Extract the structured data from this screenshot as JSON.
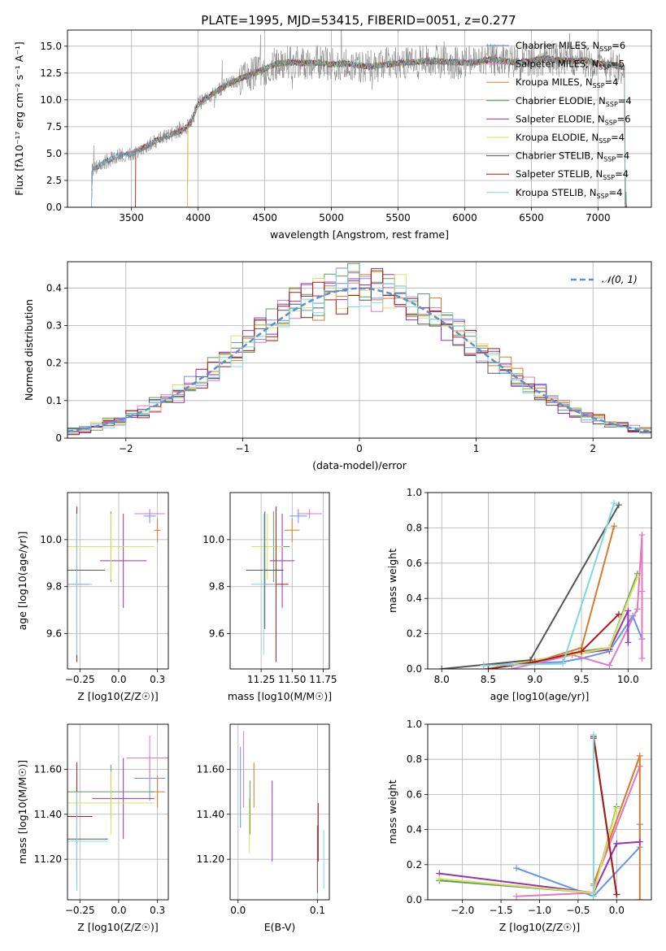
{
  "figure_title": "PLATE=1995, MJD=53415, FIBERID=0051, z=0.277",
  "colors": [
    "#6495ed",
    "#e377c2",
    "#d97b2b",
    "#5d9e5d",
    "#9b30b0",
    "#d7e35a",
    "#555555",
    "#aa1a1a",
    "#7fd9d9"
  ],
  "legend": [
    {
      "base": "Chabrier MILES, N",
      "sub": "SSP",
      "val": "=6"
    },
    {
      "base": "Salpeter MILES, N",
      "sub": "SSP",
      "val": "=5"
    },
    {
      "base": "Kroupa MILES, N",
      "sub": "SSP",
      "val": "=4"
    },
    {
      "base": "Chabrier ELODIE, N",
      "sub": "SSP",
      "val": "=4"
    },
    {
      "base": "Salpeter ELODIE, N",
      "sub": "SSP",
      "val": "=6"
    },
    {
      "base": "Kroupa ELODIE, N",
      "sub": "SSP",
      "val": "=4"
    },
    {
      "base": "Chabrier STELIB, N",
      "sub": "SSP",
      "val": "=4"
    },
    {
      "base": "Salpeter STELIB, N",
      "sub": "SSP",
      "val": "=4"
    },
    {
      "base": "Kroupa STELIB, N",
      "sub": "SSP",
      "val": "=4"
    }
  ],
  "chart_data": [
    {
      "id": "spectrum",
      "type": "line",
      "title": "PLATE=1995, MJD=53415, FIBERID=0051, z=0.277",
      "xlabel": "wavelength [Angstrom, rest frame]",
      "ylabel": "Flux [fλ10⁻¹⁷ erg cm⁻² s⁻¹ A⁻¹]",
      "xlim": [
        3020,
        7400
      ],
      "ylim": [
        0,
        16.5
      ],
      "xticks": [
        3500,
        4000,
        4500,
        5000,
        5500,
        6000,
        6500,
        7000
      ],
      "yticks": [
        0.0,
        2.5,
        5.0,
        7.5,
        10.0,
        12.5,
        15.0
      ],
      "continuum": [
        [
          3200,
          0
        ],
        [
          3205,
          3.5
        ],
        [
          3300,
          4.2
        ],
        [
          3400,
          4.8
        ],
        [
          3500,
          5.0
        ],
        [
          3600,
          5.6
        ],
        [
          3700,
          6.3
        ],
        [
          3800,
          6.8
        ],
        [
          3900,
          7.3
        ],
        [
          3950,
          8.0
        ],
        [
          4000,
          9.6
        ],
        [
          4100,
          10.5
        ],
        [
          4200,
          11.3
        ],
        [
          4300,
          11.9
        ],
        [
          4400,
          12.4
        ],
        [
          4500,
          12.9
        ],
        [
          4600,
          13.4
        ],
        [
          4700,
          13.5
        ],
        [
          4800,
          13.4
        ],
        [
          4900,
          13.5
        ],
        [
          5000,
          13.3
        ],
        [
          5100,
          13.4
        ],
        [
          5200,
          13.2
        ],
        [
          5300,
          13.1
        ],
        [
          5400,
          13.3
        ],
        [
          5500,
          13.4
        ],
        [
          5600,
          13.5
        ],
        [
          5700,
          13.6
        ],
        [
          5800,
          13.6
        ],
        [
          5900,
          13.5
        ],
        [
          6000,
          13.5
        ],
        [
          6100,
          13.5
        ],
        [
          6200,
          13.8
        ],
        [
          6300,
          13.6
        ],
        [
          6400,
          13.5
        ],
        [
          6500,
          13.6
        ],
        [
          6600,
          13.9
        ],
        [
          6700,
          13.7
        ],
        [
          6800,
          13.6
        ],
        [
          6900,
          13.7
        ],
        [
          7000,
          13.4
        ],
        [
          7100,
          13.3
        ],
        [
          7200,
          13.0
        ]
      ],
      "model_starts": [
        3200,
        3200,
        3530,
        3920,
        3920,
        3920,
        3200,
        3530,
        3200
      ],
      "grid": true,
      "legend_position": "upper right"
    },
    {
      "id": "residuals",
      "type": "step",
      "xlabel": "(data-model)/error",
      "ylabel": "Normed distribution",
      "xlim": [
        -2.5,
        2.5
      ],
      "ylim": [
        0,
        0.47
      ],
      "xticks": [
        -2,
        -1,
        0,
        1,
        2
      ],
      "yticks": [
        0.0,
        0.1,
        0.2,
        0.3,
        0.4
      ],
      "bin_width": 0.1,
      "reference": {
        "name": "N(0,1)",
        "mu": 0,
        "sigma": 1
      },
      "grid": true,
      "legend_position": "upper right"
    },
    {
      "id": "age_vs_Z",
      "type": "errorbar",
      "xlabel": "Z [log10(Z/Z☉)]",
      "ylabel": "age  [log10(age/yr)]",
      "xlim": [
        -0.33,
        0.32
      ],
      "ylim": [
        9.45,
        10.2
      ],
      "xticks": [
        -0.25,
        0.0,
        0.25
      ],
      "yticks": [
        9.6,
        9.8,
        10.0
      ],
      "points": [
        [
          0.2,
          10.1,
          0.04,
          0.03
        ],
        [
          0.2,
          10.11,
          0.1,
          0.02
        ],
        [
          0.25,
          10.04,
          0.02,
          0.05
        ],
        [
          -0.05,
          9.97,
          0.27,
          0.15
        ],
        [
          0.03,
          9.91,
          0.15,
          0.2
        ],
        [
          -0.05,
          9.97,
          0.28,
          0.14
        ],
        [
          -0.27,
          9.87,
          0.18,
          0.25
        ],
        [
          -0.27,
          9.81,
          0.08,
          0.33
        ],
        [
          -0.27,
          9.81,
          0.1,
          0.3
        ]
      ]
    },
    {
      "id": "age_vs_mass",
      "type": "errorbar",
      "xlabel": "mass [log10(M/M☉)]",
      "ylabel": "",
      "xlim": [
        11.0,
        11.8
      ],
      "ylim": [
        9.45,
        10.2
      ],
      "xticks": [
        11.25,
        11.5,
        11.75
      ],
      "yticks": [
        9.6,
        9.8,
        10.0
      ],
      "points": [
        [
          11.55,
          10.1,
          0.07,
          0.03
        ],
        [
          11.64,
          10.11,
          0.1,
          0.02
        ],
        [
          11.5,
          10.04,
          0.06,
          0.05
        ],
        [
          11.35,
          9.97,
          0.13,
          0.15
        ],
        [
          11.42,
          9.91,
          0.1,
          0.2
        ],
        [
          11.3,
          9.97,
          0.13,
          0.14
        ],
        [
          11.28,
          9.87,
          0.15,
          0.25
        ],
        [
          11.37,
          9.81,
          0.1,
          0.33
        ],
        [
          11.27,
          9.81,
          0.1,
          0.3
        ]
      ]
    },
    {
      "id": "weight_vs_age",
      "type": "line",
      "xlabel": "age  [log10(age/yr)]",
      "ylabel": "mass weight",
      "xlim": [
        7.85,
        10.25
      ],
      "ylim": [
        0,
        1.0
      ],
      "xticks": [
        8.0,
        8.5,
        9.0,
        9.5,
        10.0
      ],
      "yticks": [
        0.0,
        0.2,
        0.4,
        0.6,
        0.8,
        1.0
      ],
      "series": [
        {
          "points": [
            [
              8.45,
              0.02
            ],
            [
              9.3,
              0.04
            ],
            [
              9.5,
              0.06
            ],
            [
              9.8,
              0.1
            ],
            [
              10.05,
              0.3
            ],
            [
              10.15,
              0.17
            ]
          ]
        },
        {
          "points": [
            [
              8.75,
              0.0
            ],
            [
              9.4,
              0.08
            ],
            [
              9.8,
              0.02
            ],
            [
              10.1,
              0.34
            ],
            [
              10.15,
              0.76
            ],
            [
              10.15,
              0.44
            ],
            [
              10.15,
              0.06
            ]
          ]
        },
        {
          "points": [
            [
              8.5,
              0.0
            ],
            [
              9.0,
              0.04
            ],
            [
              9.5,
              0.12
            ],
            [
              9.85,
              0.81
            ]
          ]
        },
        {
          "points": [
            [
              8.5,
              0.0
            ],
            [
              9.0,
              0.04
            ],
            [
              9.5,
              0.1
            ],
            [
              9.8,
              0.12
            ],
            [
              10.1,
              0.54
            ]
          ]
        },
        {
          "points": [
            [
              8.5,
              0.0
            ],
            [
              9.0,
              0.05
            ],
            [
              9.5,
              0.09
            ],
            [
              9.8,
              0.11
            ],
            [
              10.0,
              0.33
            ],
            [
              10.0,
              0.15
            ]
          ]
        },
        {
          "points": [
            [
              8.5,
              0.0
            ],
            [
              9.0,
              0.05
            ],
            [
              9.5,
              0.09
            ],
            [
              9.8,
              0.12
            ],
            [
              10.1,
              0.52
            ]
          ]
        },
        {
          "points": [
            [
              8.0,
              0.0
            ],
            [
              8.95,
              0.05
            ],
            [
              9.9,
              0.93
            ]
          ]
        },
        {
          "points": [
            [
              8.5,
              0.0
            ],
            [
              9.0,
              0.04
            ],
            [
              9.5,
              0.1
            ],
            [
              9.9,
              0.31
            ]
          ]
        },
        {
          "points": [
            [
              8.45,
              0.02
            ],
            [
              9.3,
              0.03
            ],
            [
              9.85,
              0.94
            ]
          ]
        }
      ]
    },
    {
      "id": "mass_vs_Z",
      "type": "errorbar",
      "xlabel": "Z [log10(Z/Z☉)]",
      "ylabel": "mass [log10(M/M☉)]",
      "xlim": [
        -0.33,
        0.32
      ],
      "ylim": [
        11.02,
        11.8
      ],
      "xticks": [
        -0.25,
        0.0,
        0.25
      ],
      "yticks": [
        11.2,
        11.4,
        11.6
      ],
      "points": [
        [
          0.2,
          11.56,
          0.1,
          0.1
        ],
        [
          0.2,
          11.65,
          0.15,
          0.1
        ],
        [
          0.25,
          11.5,
          0.05,
          0.07
        ],
        [
          -0.05,
          11.5,
          0.28,
          0.12
        ],
        [
          0.03,
          11.47,
          0.2,
          0.18
        ],
        [
          -0.05,
          11.45,
          0.28,
          0.14
        ],
        [
          -0.27,
          11.29,
          0.2,
          0.2
        ],
        [
          -0.27,
          11.39,
          0.1,
          0.24
        ],
        [
          -0.27,
          11.28,
          0.2,
          0.22
        ]
      ]
    },
    {
      "id": "mass_vs_EBV",
      "type": "errorbar",
      "xlabel": "E(B-V)",
      "ylabel": "",
      "xlim": [
        -0.01,
        0.115
      ],
      "ylim": [
        11.02,
        11.8
      ],
      "xticks": [
        0.0,
        0.1
      ],
      "yticks": [
        11.2,
        11.4,
        11.6
      ],
      "points": [
        [
          0.003,
          11.52,
          0,
          0.18
        ],
        [
          0.007,
          11.6,
          0,
          0.17
        ],
        [
          0.02,
          11.53,
          0,
          0.1
        ],
        [
          0.015,
          11.43,
          0,
          0.12
        ],
        [
          0.043,
          11.37,
          0,
          0.18
        ],
        [
          0.014,
          11.35,
          0,
          0.12
        ],
        [
          0.1,
          11.2,
          0,
          0.15
        ],
        [
          0.101,
          11.32,
          0,
          0.13
        ],
        [
          0.108,
          11.2,
          0,
          0.13
        ]
      ]
    },
    {
      "id": "weight_vs_Z",
      "type": "line",
      "xlabel": "Z [log10(Z/Z☉)]",
      "ylabel": "mass weight",
      "xlim": [
        -2.45,
        0.45
      ],
      "ylim": [
        0,
        1.0
      ],
      "xticks": [
        -2.0,
        -1.5,
        -1.0,
        -0.5,
        0.0
      ],
      "yticks": [
        0.0,
        0.2,
        0.4,
        0.6,
        0.8,
        1.0
      ],
      "series": [
        {
          "points": [
            [
              -1.3,
              0.18
            ],
            [
              -0.3,
              0.02
            ],
            [
              0.3,
              0.3
            ],
            [
              0.3,
              0.43
            ]
          ]
        },
        {
          "points": [
            [
              -1.3,
              0.02
            ],
            [
              -0.3,
              0.04
            ],
            [
              -0.3,
              0.08
            ],
            [
              0.3,
              0.76
            ]
          ]
        },
        {
          "points": [
            [
              -0.3,
              0.09
            ],
            [
              0.3,
              0.82
            ],
            [
              0.3,
              0.0
            ]
          ]
        },
        {
          "points": [
            [
              -2.3,
              0.11
            ],
            [
              -0.3,
              0.04
            ],
            [
              0.0,
              0.53
            ]
          ]
        },
        {
          "points": [
            [
              -2.3,
              0.15
            ],
            [
              -0.3,
              0.04
            ],
            [
              0.0,
              0.32
            ],
            [
              0.3,
              0.33
            ]
          ]
        },
        {
          "points": [
            [
              -2.3,
              0.12
            ],
            [
              -0.3,
              0.04
            ],
            [
              0.0,
              0.52
            ]
          ]
        },
        {
          "points": [
            [
              -0.3,
              0.92
            ],
            [
              0.0,
              0.03
            ]
          ]
        },
        {
          "points": [
            [
              -0.3,
              0.93
            ],
            [
              0.0,
              0.03
            ]
          ]
        },
        {
          "points": [
            [
              -0.3,
              0.94
            ],
            [
              -0.3,
              0.02
            ]
          ]
        }
      ]
    }
  ]
}
